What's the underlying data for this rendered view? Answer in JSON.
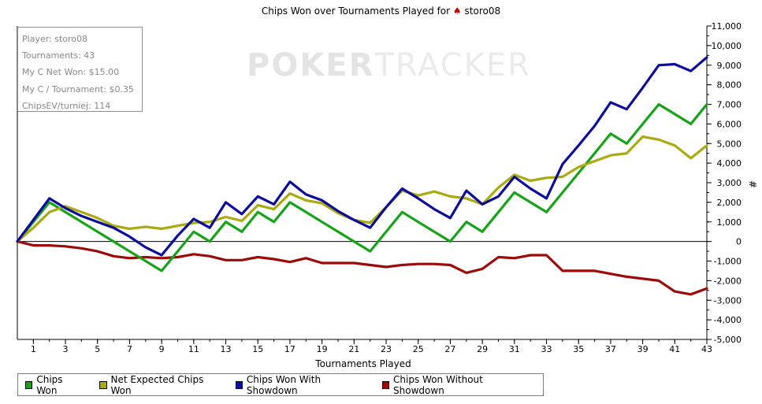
{
  "title_prefix": "Chips Won over Tournaments Played for",
  "player_icon": "spade-icon",
  "title_player": "storo08",
  "watermark": {
    "part1": "POKER",
    "part2": "TRACKER"
  },
  "stats": {
    "player": "Player: storo08",
    "tournaments": "Tournaments: 43",
    "net_won": "My C Net Won: $15.00",
    "per_tournament": "My C / Tournament: $0.35",
    "chips_ev": "ChipsEV/turniej: 114"
  },
  "colors": {
    "chips_won": "#17a317",
    "net_expected": "#aaaa11",
    "with_showdown": "#0b0b9c",
    "without_showdown": "#9c0a0a"
  },
  "chart_data": {
    "type": "line",
    "xlabel": "Tournaments Played",
    "ylabel": "#",
    "xlim": [
      0,
      43
    ],
    "ylim": [
      -5000,
      11000
    ],
    "x_ticks": [
      1,
      3,
      5,
      7,
      9,
      11,
      13,
      15,
      17,
      19,
      21,
      23,
      25,
      27,
      29,
      31,
      33,
      35,
      37,
      39,
      41,
      43
    ],
    "y_ticks": [
      -5000,
      -4000,
      -3000,
      -2000,
      -1000,
      0,
      1000,
      2000,
      3000,
      4000,
      5000,
      6000,
      7000,
      8000,
      9000,
      10000,
      11000
    ],
    "y_tick_labels": [
      "-5,000",
      "-4,000",
      "-3,000",
      "-2,000",
      "-1,000",
      "0",
      "1,000",
      "2,000",
      "3,000",
      "4,000",
      "5,000",
      "6,000",
      "7,000",
      "8,000",
      "9,000",
      "10,000",
      "11,000"
    ],
    "grid": false,
    "legend_position": "bottom",
    "x": [
      0,
      1,
      2,
      3,
      4,
      5,
      6,
      7,
      8,
      9,
      10,
      11,
      12,
      13,
      14,
      15,
      16,
      17,
      18,
      19,
      20,
      21,
      22,
      23,
      24,
      25,
      26,
      27,
      28,
      29,
      30,
      31,
      32,
      33,
      34,
      35,
      36,
      37,
      38,
      39,
      40,
      41,
      42,
      43
    ],
    "series": [
      {
        "name": "Chips Won",
        "color_key": "chips_won",
        "values": [
          0,
          1000,
          2000,
          1500,
          1000,
          500,
          0,
          -500,
          -1000,
          -1500,
          -500,
          500,
          0,
          1000,
          500,
          1500,
          1000,
          2000,
          1500,
          1000,
          500,
          0,
          -500,
          500,
          1500,
          1000,
          500,
          0,
          1000,
          500,
          1500,
          2500,
          2000,
          1500,
          2500,
          3500,
          4500,
          5500,
          5000,
          6000,
          7000,
          6500,
          6000,
          7000
        ]
      },
      {
        "name": "Net Expected Chips Won",
        "color_key": "net_expected",
        "values": [
          0,
          700,
          1500,
          1800,
          1500,
          1200,
          800,
          650,
          750,
          650,
          800,
          950,
          1000,
          1250,
          1050,
          1850,
          1650,
          2450,
          2100,
          1950,
          1450,
          1100,
          950,
          1750,
          2600,
          2350,
          2550,
          2300,
          2200,
          1900,
          2750,
          3400,
          3100,
          3250,
          3300,
          3800,
          4100,
          4400,
          4500,
          5350,
          5200,
          4900,
          4250,
          4900
        ]
      },
      {
        "name": "Chips Won With Showdown",
        "color_key": "with_showdown",
        "values": [
          0,
          1100,
          2200,
          1700,
          1300,
          1000,
          700,
          250,
          -300,
          -700,
          300,
          1150,
          700,
          2000,
          1400,
          2300,
          1900,
          3050,
          2400,
          2100,
          1550,
          1100,
          700,
          1750,
          2700,
          2200,
          1650,
          1200,
          2600,
          1900,
          2300,
          3300,
          2700,
          2200,
          3950,
          4900,
          5900,
          7100,
          6750,
          7850,
          9000,
          9050,
          8700,
          9400
        ]
      },
      {
        "name": "Chips Won Without Showdown",
        "color_key": "without_showdown",
        "values": [
          0,
          -200,
          -200,
          -250,
          -350,
          -500,
          -750,
          -850,
          -800,
          -850,
          -800,
          -650,
          -750,
          -950,
          -950,
          -800,
          -900,
          -1050,
          -850,
          -1100,
          -1100,
          -1100,
          -1200,
          -1300,
          -1200,
          -1150,
          -1150,
          -1200,
          -1600,
          -1400,
          -800,
          -850,
          -700,
          -700,
          -1500,
          -1500,
          -1500,
          -1650,
          -1800,
          -1900,
          -2000,
          -2550,
          -2700,
          -2400
        ]
      }
    ]
  }
}
